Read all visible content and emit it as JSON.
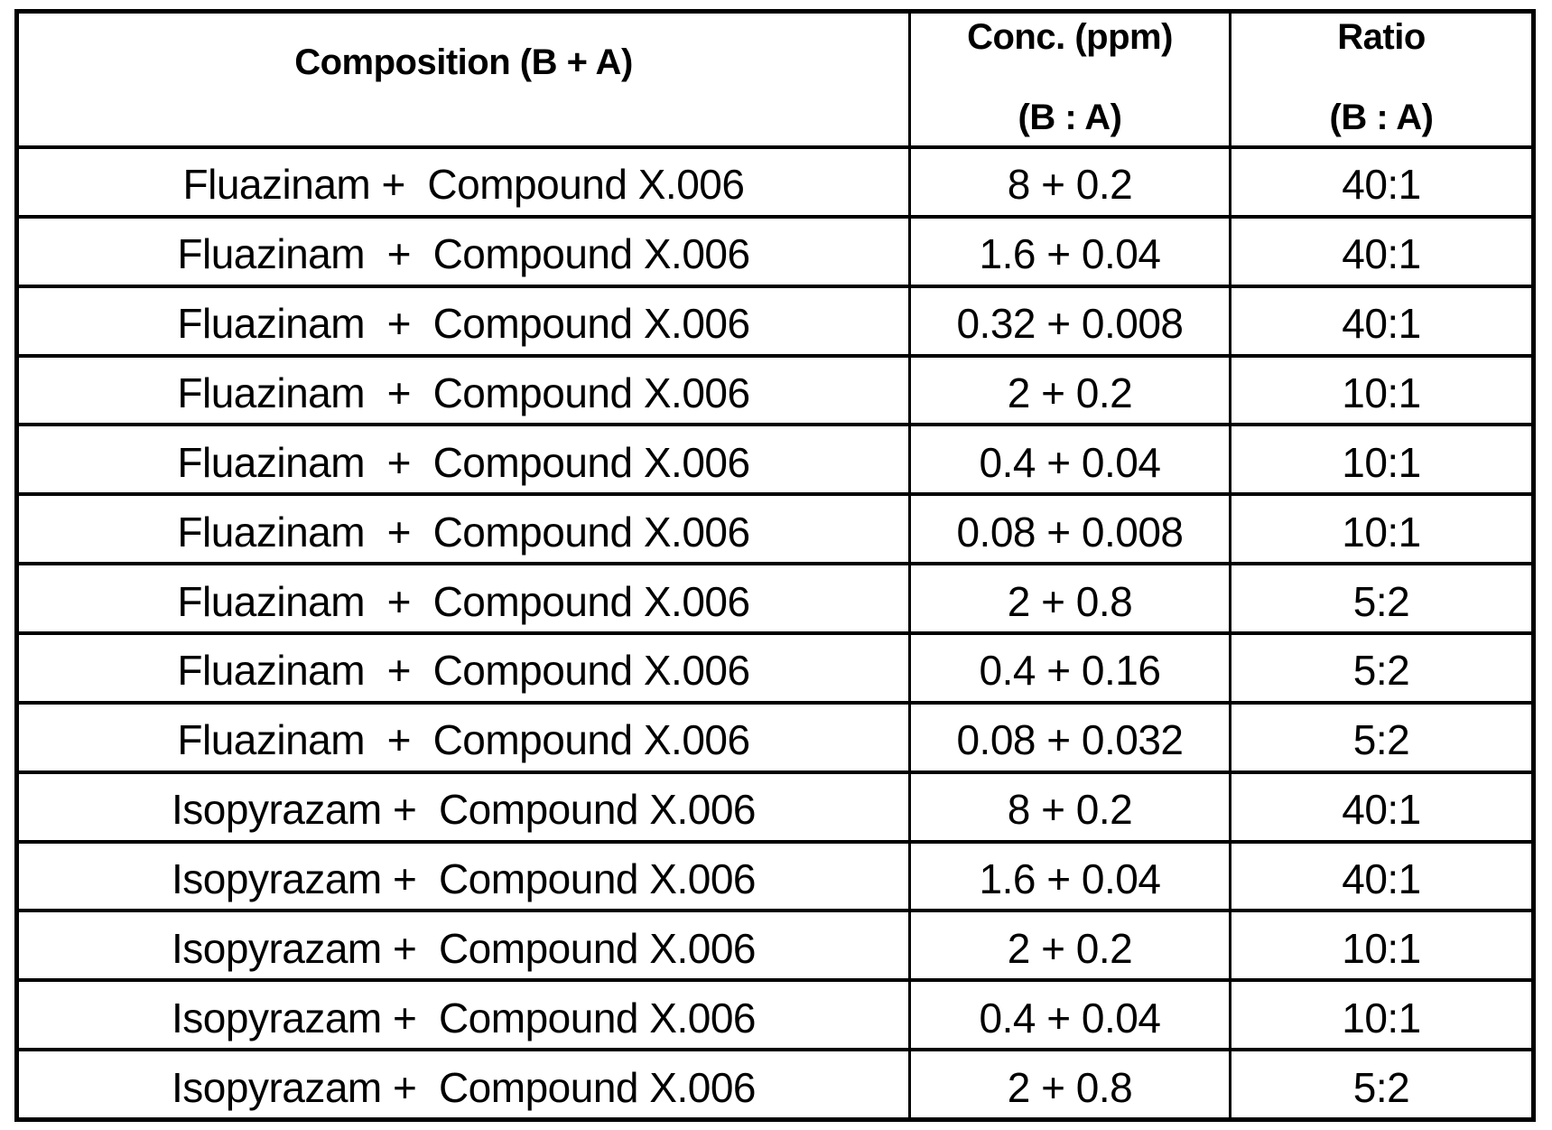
{
  "colors": {
    "border": "#000000",
    "background": "#ffffff",
    "text": "#000000"
  },
  "table": {
    "header": {
      "composition": "Composition (B + A)",
      "conc_line1": "Conc. (ppm)",
      "conc_line2": "(B : A)",
      "ratio_line1": "Ratio",
      "ratio_line2": "(B : A)"
    },
    "rows": [
      {
        "composition": "Fluazinam +  Compound X.006",
        "conc": "8 + 0.2",
        "ratio": "40:1"
      },
      {
        "composition": "Fluazinam  +  Compound X.006",
        "conc": "1.6 + 0.04",
        "ratio": "40:1"
      },
      {
        "composition": "Fluazinam  +  Compound X.006",
        "conc": "0.32 + 0.008",
        "ratio": "40:1"
      },
      {
        "composition": "Fluazinam  +  Compound X.006",
        "conc": "2 + 0.2",
        "ratio": "10:1"
      },
      {
        "composition": "Fluazinam  +  Compound X.006",
        "conc": "0.4 + 0.04",
        "ratio": "10:1"
      },
      {
        "composition": "Fluazinam  +  Compound X.006",
        "conc": "0.08 + 0.008",
        "ratio": "10:1"
      },
      {
        "composition": "Fluazinam  +  Compound X.006",
        "conc": "2 + 0.8",
        "ratio": "5:2"
      },
      {
        "composition": "Fluazinam  +  Compound X.006",
        "conc": "0.4 + 0.16",
        "ratio": "5:2"
      },
      {
        "composition": "Fluazinam  +  Compound X.006",
        "conc": "0.08 + 0.032",
        "ratio": "5:2"
      },
      {
        "composition": "Isopyrazam +  Compound X.006",
        "conc": "8 + 0.2",
        "ratio": "40:1"
      },
      {
        "composition": "Isopyrazam +  Compound X.006",
        "conc": "1.6 + 0.04",
        "ratio": "40:1"
      },
      {
        "composition": "Isopyrazam +  Compound X.006",
        "conc": "2 + 0.2",
        "ratio": "10:1"
      },
      {
        "composition": "Isopyrazam +  Compound X.006",
        "conc": "0.4 + 0.04",
        "ratio": "10:1"
      },
      {
        "composition": "Isopyrazam +  Compound X.006",
        "conc": "2 + 0.8",
        "ratio": "5:2"
      }
    ]
  }
}
